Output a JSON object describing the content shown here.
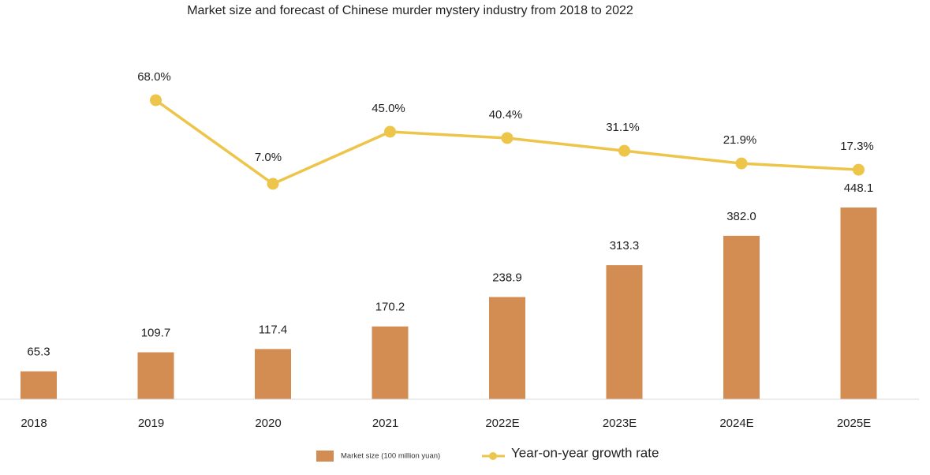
{
  "chart_data": {
    "type": "bar",
    "title": "Market size and forecast of Chinese murder mystery industry from 2018 to 2022",
    "categories": [
      "2018",
      "2019",
      "2020",
      "2021",
      "2022E",
      "2023E",
      "2024E",
      "2025E"
    ],
    "series": [
      {
        "name": "Market size (100 million yuan)",
        "type": "bar",
        "values": [
          65.3,
          109.7,
          117.4,
          170.2,
          238.9,
          313.3,
          382.0,
          448.1
        ],
        "labels": [
          "65.3",
          "109.7",
          "117.4",
          "170.2",
          "238.9",
          "313.3",
          "382.0",
          "448.1"
        ],
        "color": "#d38c52"
      },
      {
        "name": "Year-on-year growth rate",
        "type": "line",
        "values": [
          null,
          68.0,
          7.0,
          45.0,
          40.4,
          31.1,
          21.9,
          17.3
        ],
        "labels": [
          "",
          "68.0%",
          "7.0%",
          "45.0%",
          "40.4%",
          "31.1%",
          "21.9%",
          "17.3%"
        ],
        "color": "#ecc54a"
      }
    ],
    "bar_axis_range": [
      0,
      448.1
    ],
    "line_axis_range": [
      7.0,
      68.0
    ],
    "gridlines": false,
    "legend_position": "bottom"
  }
}
